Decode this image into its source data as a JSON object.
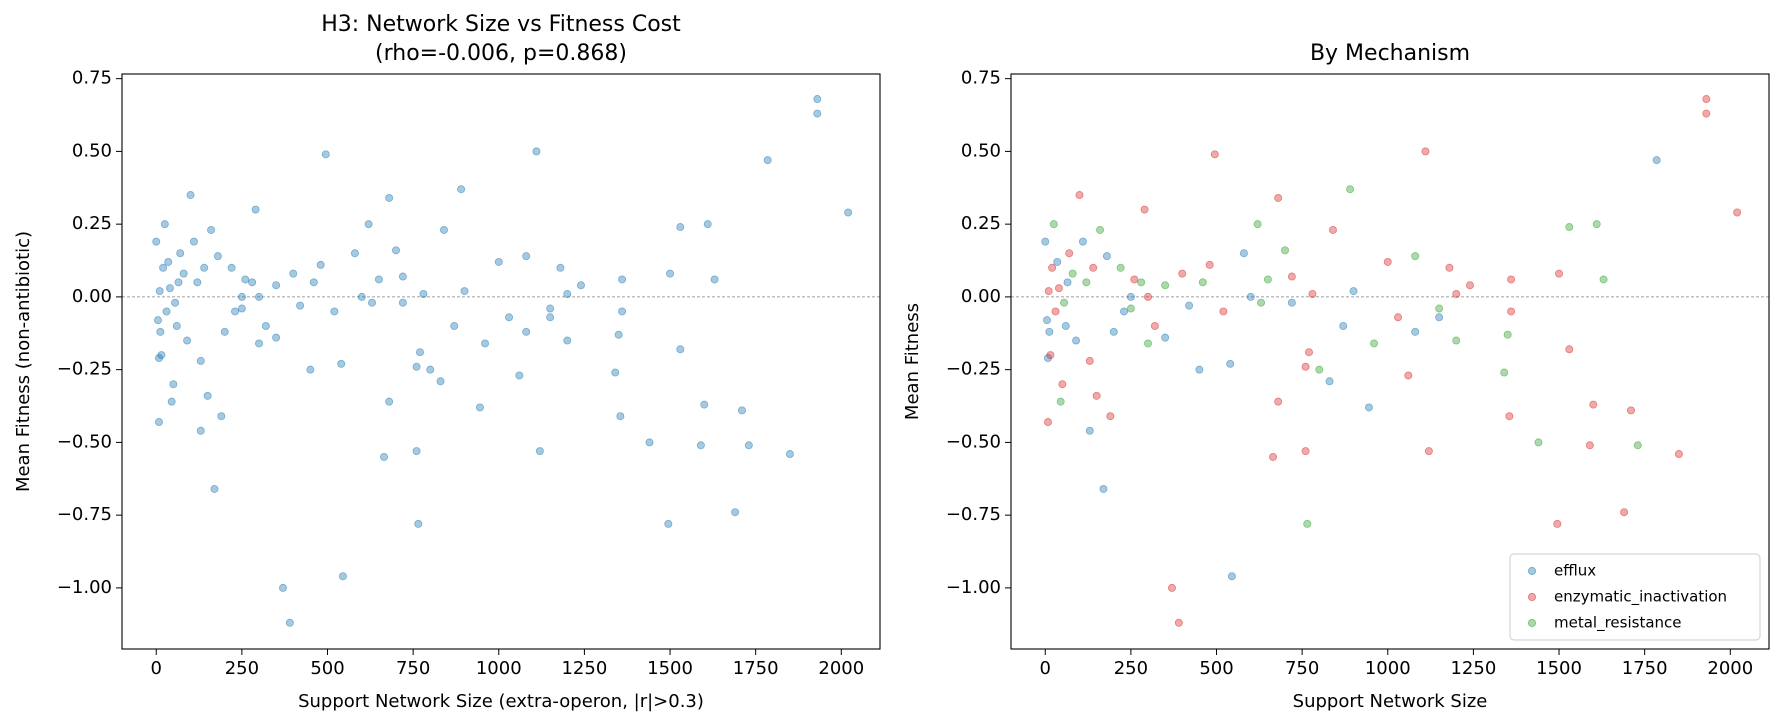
{
  "chart_data": [
    {
      "type": "scatter",
      "title": "H3: Network Size vs Fitness Cost",
      "subtitle": "(rho=-0.006, p=0.868)",
      "xlabel": "Support Network Size (extra-operon, |r|>0.3)",
      "ylabel": "Mean Fitness (non-antibiotic)",
      "xlim": [
        -100,
        2113
      ],
      "ylim": [
        -1.21,
        0.766
      ],
      "xticks": [
        0,
        250,
        500,
        750,
        1000,
        1250,
        1500,
        1750,
        2000
      ],
      "yticks": [
        {
          "value": -1,
          "label": "−1.00"
        },
        {
          "value": -0.75,
          "label": "−0.75"
        },
        {
          "value": -0.5,
          "label": "−0.50"
        },
        {
          "value": -0.25,
          "label": "−0.25"
        },
        {
          "value": 0,
          "label": "0.00"
        },
        {
          "value": 0.25,
          "label": "0.25"
        },
        {
          "value": 0.5,
          "label": "0.50"
        },
        0.75
      ],
      "hline": 0,
      "color": "#1f77b4",
      "x": [
        1785,
        945,
        545,
        170,
        130,
        1080,
        870,
        830,
        450,
        540,
        580,
        600,
        720,
        900,
        1150,
        110,
        60,
        5,
        0,
        35,
        90,
        12,
        200,
        250,
        350,
        420,
        180,
        65,
        230,
        8,
        1930,
        1930,
        2020,
        1110,
        495,
        680,
        290,
        100,
        1355,
        1530,
        1600,
        1590,
        1710,
        1690,
        1495,
        1850,
        1120,
        1060,
        760,
        665,
        680,
        370,
        390,
        190,
        8,
        50,
        150,
        770,
        760,
        1000,
        1180,
        1240,
        1360,
        1500,
        1360,
        840,
        720,
        480,
        400,
        300,
        140,
        40,
        20,
        30,
        15,
        320,
        520,
        1200,
        1030,
        780,
        260,
        130,
        70,
        10,
        1610,
        1530,
        890,
        620,
        1350,
        1340,
        1730,
        1440,
        765,
        1630,
        1080,
        800,
        650,
        700,
        350,
        220,
        160,
        25,
        45,
        120,
        55,
        80,
        280,
        460,
        630,
        300,
        250,
        1200,
        960,
        1150
      ],
      "values": [
        0.47,
        -0.38,
        -0.96,
        -0.66,
        -0.46,
        -0.12,
        -0.1,
        -0.29,
        -0.25,
        -0.23,
        0.15,
        0,
        -0.02,
        0.02,
        -0.07,
        0.19,
        -0.1,
        -0.08,
        0.19,
        0.12,
        -0.15,
        -0.12,
        -0.12,
        0,
        -0.14,
        -0.03,
        0.14,
        0.05,
        -0.05,
        -0.21,
        0.68,
        0.63,
        0.29,
        0.5,
        0.49,
        0.34,
        0.3,
        0.35,
        -0.41,
        -0.18,
        -0.37,
        -0.51,
        -0.39,
        -0.74,
        -0.78,
        -0.54,
        -0.53,
        -0.27,
        -0.53,
        -0.55,
        -0.36,
        -1,
        -1.12,
        -0.41,
        -0.43,
        -0.3,
        -0.34,
        -0.19,
        -0.24,
        0.12,
        0.1,
        0.04,
        0.06,
        0.08,
        -0.05,
        0.23,
        0.07,
        0.11,
        0.08,
        0,
        0.1,
        0.03,
        0.1,
        -0.05,
        -0.2,
        -0.1,
        -0.05,
        0.01,
        -0.07,
        0.01,
        0.06,
        -0.22,
        0.15,
        0.02,
        0.25,
        0.24,
        0.37,
        0.25,
        -0.13,
        -0.26,
        -0.51,
        -0.5,
        -0.78,
        0.06,
        0.14,
        -0.25,
        0.06,
        0.16,
        0.04,
        0.1,
        0.23,
        0.25,
        -0.36,
        0.05,
        -0.02,
        0.08,
        0.05,
        0.05,
        -0.02,
        -0.16,
        -0.04,
        -0.15,
        -0.16,
        -0.04
      ]
    },
    {
      "type": "scatter",
      "title": "By Mechanism",
      "xlabel": "Support Network Size",
      "ylabel": "Mean Fitness",
      "xlim": [
        -100,
        2113
      ],
      "ylim": [
        -1.21,
        0.766
      ],
      "xticks": [
        0,
        250,
        500,
        750,
        1000,
        1250,
        1500,
        1750,
        2000
      ],
      "yticks": [
        {
          "value": -1,
          "label": "−1.00"
        },
        {
          "value": -0.75,
          "label": "−0.75"
        },
        {
          "value": -0.5,
          "label": "−0.50"
        },
        {
          "value": -0.25,
          "label": "−0.25"
        },
        {
          "value": 0,
          "label": "0.00"
        },
        {
          "value": 0.25,
          "label": "0.25"
        },
        {
          "value": 0.5,
          "label": "0.50"
        },
        0.75
      ],
      "hline": 0,
      "legend": "lower right",
      "series": [
        {
          "name": "efflux",
          "color": "#1f77b4",
          "x": [
            1785,
            945,
            545,
            170,
            130,
            1080,
            870,
            830,
            450,
            540,
            580,
            600,
            720,
            900,
            1150,
            110,
            60,
            5,
            0,
            35,
            90,
            12,
            200,
            250,
            350,
            420,
            180,
            65,
            230,
            8
          ],
          "values": [
            0.47,
            -0.38,
            -0.96,
            -0.66,
            -0.46,
            -0.12,
            -0.1,
            -0.29,
            -0.25,
            -0.23,
            0.15,
            0,
            -0.02,
            0.02,
            -0.07,
            0.19,
            -0.1,
            -0.08,
            0.19,
            0.12,
            -0.15,
            -0.12,
            -0.12,
            0,
            -0.14,
            -0.03,
            0.14,
            0.05,
            -0.05,
            -0.21
          ]
        },
        {
          "name": "enzymatic_inactivation",
          "color": "#d62728",
          "x": [
            1930,
            1930,
            2020,
            1110,
            495,
            680,
            290,
            100,
            1355,
            1530,
            1600,
            1590,
            1710,
            1690,
            1495,
            1850,
            1120,
            1060,
            760,
            665,
            680,
            370,
            390,
            190,
            8,
            50,
            150,
            770,
            760,
            1000,
            1180,
            1240,
            1360,
            1500,
            1360,
            840,
            720,
            480,
            400,
            300,
            140,
            40,
            20,
            30,
            15,
            320,
            520,
            1200,
            1030,
            780,
            260,
            130,
            70,
            10
          ],
          "values": [
            0.68,
            0.63,
            0.29,
            0.5,
            0.49,
            0.34,
            0.3,
            0.35,
            -0.41,
            -0.18,
            -0.37,
            -0.51,
            -0.39,
            -0.74,
            -0.78,
            -0.54,
            -0.53,
            -0.27,
            -0.53,
            -0.55,
            -0.36,
            -1,
            -1.12,
            -0.41,
            -0.43,
            -0.3,
            -0.34,
            -0.19,
            -0.24,
            0.12,
            0.1,
            0.04,
            0.06,
            0.08,
            -0.05,
            0.23,
            0.07,
            0.11,
            0.08,
            0,
            0.1,
            0.03,
            0.1,
            -0.05,
            -0.2,
            -0.1,
            -0.05,
            0.01,
            -0.07,
            0.01,
            0.06,
            -0.22,
            0.15,
            0.02
          ]
        },
        {
          "name": "metal_resistance",
          "color": "#2ca02c",
          "x": [
            1610,
            1530,
            890,
            620,
            1350,
            1340,
            1730,
            1440,
            765,
            1630,
            1080,
            800,
            650,
            700,
            350,
            220,
            160,
            25,
            45,
            120,
            55,
            80,
            280,
            460,
            630,
            300,
            250,
            1200,
            960,
            1150
          ],
          "values": [
            0.25,
            0.24,
            0.37,
            0.25,
            -0.13,
            -0.26,
            -0.51,
            -0.5,
            -0.78,
            0.06,
            0.14,
            -0.25,
            0.06,
            0.16,
            0.04,
            0.1,
            0.23,
            0.25,
            -0.36,
            0.05,
            -0.02,
            0.08,
            0.05,
            0.05,
            -0.02,
            -0.16,
            -0.04,
            -0.15,
            -0.16,
            -0.04
          ]
        }
      ]
    }
  ]
}
